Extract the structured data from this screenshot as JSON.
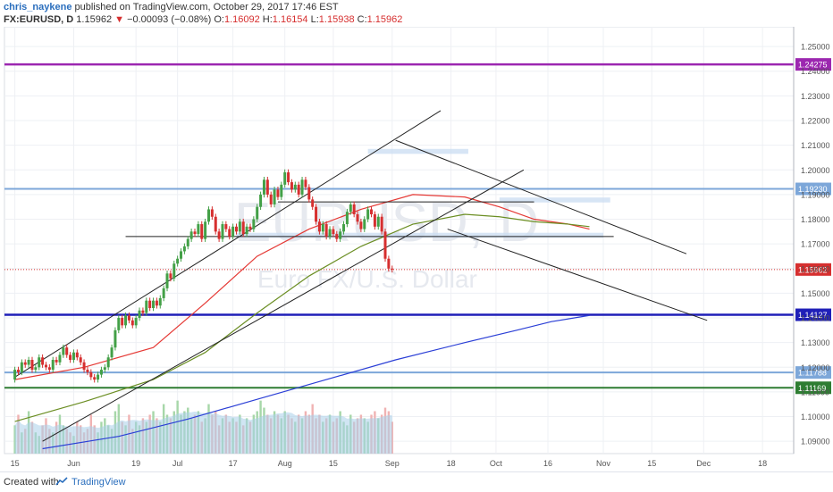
{
  "header": {
    "author": "chris_naykene",
    "published_text": "published on TradingView.com, October 29, 2017 17:46 EST",
    "symbol": "FX:EURUSD, D",
    "last": "1.15962",
    "change_arrow": "▼",
    "change": "−0.00093 (−0.08%)",
    "o_label": "O:",
    "o": "1.16092",
    "h_label": "H:",
    "h": "1.16154",
    "l_label": "L:",
    "l": "1.15938",
    "c_label": "C:",
    "c": "1.15962"
  },
  "watermark": {
    "symbol": "EURUSD, D",
    "name": "Euro FX/U.S. Dollar"
  },
  "footer": {
    "created_with": "Created with",
    "brand": "TradingView"
  },
  "colors": {
    "up": "#43a047",
    "down": "#d62f2f",
    "purple": "#9c27b0",
    "blue": "#1f1fb8",
    "lightblue": "#7da7d9",
    "green": "#2e7d32",
    "ma_fast": "#e53935",
    "ma_mid": "#6b8e23",
    "ma_slow": "#2b3fd6"
  },
  "chart_data": {
    "type": "candlestick",
    "ylim": [
      1.085,
      1.258
    ],
    "y_ticks": [
      "1.25000",
      "1.24000",
      "1.23000",
      "1.22000",
      "1.21000",
      "1.20000",
      "1.19000",
      "1.18000",
      "1.17000",
      "1.16000",
      "1.15000",
      "1.14000",
      "1.13000",
      "1.12000",
      "1.11000",
      "1.10000",
      "1.09000"
    ],
    "x_ticks": [
      {
        "label": "15",
        "day": 0
      },
      {
        "label": "Jun",
        "day": 17
      },
      {
        "label": "19",
        "day": 35
      },
      {
        "label": "Jul",
        "day": 47
      },
      {
        "label": "17",
        "day": 63
      },
      {
        "label": "Aug",
        "day": 78
      },
      {
        "label": "15",
        "day": 92
      },
      {
        "label": "Sep",
        "day": 109
      },
      {
        "label": "18",
        "day": 126
      },
      {
        "label": "Oct",
        "day": 139
      },
      {
        "label": "16",
        "day": 154
      },
      {
        "label": "Nov",
        "day": 170
      },
      {
        "label": "15",
        "day": 184
      },
      {
        "label": "Dec",
        "day": 199
      },
      {
        "label": "18",
        "day": 216
      }
    ],
    "x_range": [
      -3,
      225
    ],
    "horizontal_levels": [
      {
        "price": 1.24275,
        "label": "1.24275",
        "color": "#9c27b0",
        "width": 2.5
      },
      {
        "price": 1.1923,
        "label": "1.19230",
        "color": "#7da7d9",
        "width": 2
      },
      {
        "price": 1.14127,
        "label": "1.14127",
        "color": "#1f1fb8",
        "width": 2.5
      },
      {
        "price": 1.11788,
        "label": "1.11788",
        "color": "#7da7d9",
        "width": 2
      },
      {
        "price": 1.11169,
        "label": "1.11169",
        "color": "#2e7d32",
        "width": 2
      }
    ],
    "last_price": {
      "price": 1.15962,
      "label": "1.15962",
      "color": "#d62f2f"
    },
    "trendlines": [
      {
        "x1": 0,
        "y1": 1.116,
        "x2": 123,
        "y2": 1.224
      },
      {
        "x1": 8,
        "y1": 1.09,
        "x2": 147,
        "y2": 1.2
      },
      {
        "x1": 110,
        "y1": 1.212,
        "x2": 194,
        "y2": 1.166
      },
      {
        "x1": 125,
        "y1": 1.176,
        "x2": 200,
        "y2": 1.139
      },
      {
        "x1": 76,
        "y1": 1.187,
        "x2": 150,
        "y2": 1.187
      },
      {
        "x1": 32,
        "y1": 1.173,
        "x2": 173,
        "y2": 1.173
      }
    ],
    "zones": [
      {
        "x1": 102,
        "x2": 131,
        "y1": 1.2065,
        "y2": 1.2085
      },
      {
        "x1": 64,
        "x2": 170,
        "y1": 1.1725,
        "y2": 1.1745
      },
      {
        "x1": 140,
        "x2": 172,
        "y1": 1.1868,
        "y2": 1.1888
      }
    ],
    "candles": {
      "start_day": 0,
      "open": [
        1.115,
        1.119,
        1.118,
        1.122,
        1.121,
        1.123,
        1.119,
        1.12,
        1.124,
        1.121,
        1.12,
        1.119,
        1.123,
        1.122,
        1.125,
        1.128,
        1.125,
        1.123,
        1.126,
        1.124,
        1.122,
        1.119,
        1.118,
        1.116,
        1.115,
        1.117,
        1.119,
        1.12,
        1.124,
        1.128,
        1.135,
        1.14,
        1.137,
        1.141,
        1.139,
        1.137,
        1.14,
        1.143,
        1.142,
        1.147,
        1.144,
        1.147,
        1.145,
        1.148,
        1.152,
        1.158,
        1.156,
        1.162,
        1.164,
        1.167,
        1.169,
        1.172,
        1.175,
        1.174,
        1.178,
        1.172,
        1.179,
        1.184,
        1.181,
        1.175,
        1.172,
        1.178,
        1.176,
        1.173,
        1.177,
        1.175,
        1.179,
        1.174,
        1.177,
        1.176,
        1.18,
        1.185,
        1.19,
        1.196,
        1.19,
        1.186,
        1.192,
        1.189,
        1.194,
        1.199,
        1.195,
        1.192,
        1.194,
        1.19,
        1.196,
        1.193,
        1.188,
        1.185,
        1.179,
        1.175,
        1.178,
        1.173,
        1.176,
        1.174,
        1.172,
        1.175,
        1.178,
        1.183,
        1.186,
        1.182,
        1.179,
        1.176,
        1.18,
        1.184,
        1.182,
        1.177,
        1.181,
        1.175,
        1.164,
        1.16
      ],
      "close": [
        1.119,
        1.118,
        1.122,
        1.121,
        1.123,
        1.119,
        1.12,
        1.124,
        1.121,
        1.12,
        1.119,
        1.123,
        1.122,
        1.125,
        1.128,
        1.125,
        1.123,
        1.126,
        1.124,
        1.122,
        1.119,
        1.118,
        1.116,
        1.115,
        1.117,
        1.119,
        1.12,
        1.124,
        1.128,
        1.135,
        1.14,
        1.137,
        1.141,
        1.139,
        1.137,
        1.14,
        1.143,
        1.142,
        1.147,
        1.144,
        1.147,
        1.145,
        1.148,
        1.152,
        1.158,
        1.156,
        1.162,
        1.164,
        1.167,
        1.169,
        1.172,
        1.175,
        1.174,
        1.178,
        1.172,
        1.179,
        1.184,
        1.181,
        1.175,
        1.172,
        1.178,
        1.176,
        1.173,
        1.177,
        1.175,
        1.179,
        1.174,
        1.177,
        1.176,
        1.18,
        1.185,
        1.19,
        1.196,
        1.19,
        1.186,
        1.192,
        1.189,
        1.194,
        1.199,
        1.195,
        1.192,
        1.194,
        1.19,
        1.196,
        1.193,
        1.188,
        1.185,
        1.179,
        1.175,
        1.178,
        1.173,
        1.176,
        1.174,
        1.172,
        1.175,
        1.178,
        1.183,
        1.186,
        1.182,
        1.179,
        1.176,
        1.18,
        1.184,
        1.182,
        1.177,
        1.181,
        1.175,
        1.164,
        1.16,
        1.1596
      ]
    },
    "moving_averages": [
      {
        "color": "#e53935",
        "points": [
          [
            0,
            1.115
          ],
          [
            20,
            1.12
          ],
          [
            40,
            1.128
          ],
          [
            55,
            1.146
          ],
          [
            70,
            1.165
          ],
          [
            85,
            1.176
          ],
          [
            100,
            1.184
          ],
          [
            115,
            1.19
          ],
          [
            130,
            1.189
          ],
          [
            140,
            1.185
          ],
          [
            150,
            1.18
          ],
          [
            160,
            1.178
          ],
          [
            166,
            1.176
          ]
        ]
      },
      {
        "color": "#6b8e23",
        "points": [
          [
            0,
            1.098
          ],
          [
            20,
            1.106
          ],
          [
            40,
            1.115
          ],
          [
            55,
            1.126
          ],
          [
            70,
            1.142
          ],
          [
            85,
            1.157
          ],
          [
            100,
            1.169
          ],
          [
            115,
            1.178
          ],
          [
            130,
            1.182
          ],
          [
            140,
            1.181
          ],
          [
            150,
            1.179
          ],
          [
            160,
            1.178
          ],
          [
            166,
            1.177
          ]
        ]
      },
      {
        "color": "#2b3fd6",
        "points": [
          [
            8,
            1.087
          ],
          [
            30,
            1.092
          ],
          [
            50,
            1.099
          ],
          [
            70,
            1.107
          ],
          [
            90,
            1.115
          ],
          [
            110,
            1.123
          ],
          [
            130,
            1.13
          ],
          [
            145,
            1.135
          ],
          [
            155,
            1.1385
          ],
          [
            166,
            1.141
          ]
        ]
      }
    ],
    "volume": {
      "values": [
        40,
        55,
        30,
        35,
        60,
        45,
        30,
        25,
        40,
        50,
        35,
        30,
        45,
        55,
        40,
        35,
        30,
        25,
        45,
        40,
        30,
        35,
        55,
        40,
        30,
        45,
        50,
        40,
        35,
        60,
        70,
        45,
        40,
        55,
        35,
        45,
        40,
        50,
        45,
        55,
        60,
        50,
        45,
        70,
        55,
        50,
        60,
        75,
        55,
        60,
        65,
        50,
        55,
        60,
        45,
        50,
        70,
        55,
        60,
        40,
        50,
        55,
        45,
        50,
        45,
        55,
        40,
        50,
        45,
        55,
        60,
        75,
        65,
        55,
        50,
        60,
        55,
        50,
        60,
        55,
        50,
        45,
        55,
        50,
        60,
        55,
        70,
        50,
        55,
        45,
        50,
        55,
        45,
        50,
        60,
        45,
        40,
        55,
        45,
        50,
        55,
        50,
        45,
        55,
        60,
        50,
        55,
        65,
        60,
        45
      ],
      "ylim": [
        0,
        120
      ]
    }
  }
}
